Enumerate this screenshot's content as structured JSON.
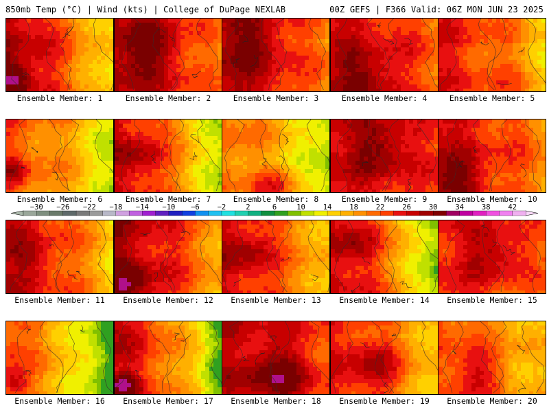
{
  "header": {
    "left_title": "850mb Temp (°C) | Wind (kts) | College of DuPage NEXLAB",
    "right_title": "00Z GEFS | F366 Valid: 06Z MON JUN 23 2025"
  },
  "colorbar": {
    "labels": [
      "-30",
      "-26",
      "-22",
      "-18",
      "-14",
      "-10",
      "-6",
      "-2",
      "2",
      "6",
      "10",
      "14",
      "18",
      "22",
      "26",
      "30",
      "34",
      "38",
      "42"
    ],
    "colors": [
      "#9aa79a",
      "#7f8f7f",
      "#6a7a6a",
      "#5f6a6a",
      "#7a7a7a",
      "#9a9a9a",
      "#b8b8c8",
      "#d0a0e0",
      "#c060e0",
      "#a020d0",
      "#6020c0",
      "#2020c0",
      "#1040e0",
      "#1090f0",
      "#20c0f0",
      "#20e0e0",
      "#20d0b0",
      "#10b080",
      "#109040",
      "#30a020",
      "#80c000",
      "#c0e000",
      "#f0f000",
      "#ffd000",
      "#ffb000",
      "#ff9000",
      "#ff6a00",
      "#ff4000",
      "#e81010",
      "#c80000",
      "#a00000",
      "#800000",
      "#a00060",
      "#c000a0",
      "#e020c0",
      "#f050e0",
      "#f080f0",
      "#f0b0f0"
    ],
    "range": [
      -32,
      44
    ]
  },
  "panels": [
    {
      "caption": "Ensemble Member: 1"
    },
    {
      "caption": "Ensemble Member: 2"
    },
    {
      "caption": "Ensemble Member: 3"
    },
    {
      "caption": "Ensemble Member: 4"
    },
    {
      "caption": "Ensemble Member: 5"
    },
    {
      "caption": "Ensemble Member: 6"
    },
    {
      "caption": "Ensemble Member: 7"
    },
    {
      "caption": "Ensemble Member: 8"
    },
    {
      "caption": "Ensemble Member: 9"
    },
    {
      "caption": "Ensemble Member: 10"
    },
    {
      "caption": "Ensemble Member: 11"
    },
    {
      "caption": "Ensemble Member: 12"
    },
    {
      "caption": "Ensemble Member: 13"
    },
    {
      "caption": "Ensemble Member: 14"
    },
    {
      "caption": "Ensemble Member: 15"
    },
    {
      "caption": "Ensemble Member: 16"
    },
    {
      "caption": "Ensemble Member: 17"
    },
    {
      "caption": "Ensemble Member: 18"
    },
    {
      "caption": "Ensemble Member: 19"
    },
    {
      "caption": "Ensemble Member: 20"
    }
  ]
}
